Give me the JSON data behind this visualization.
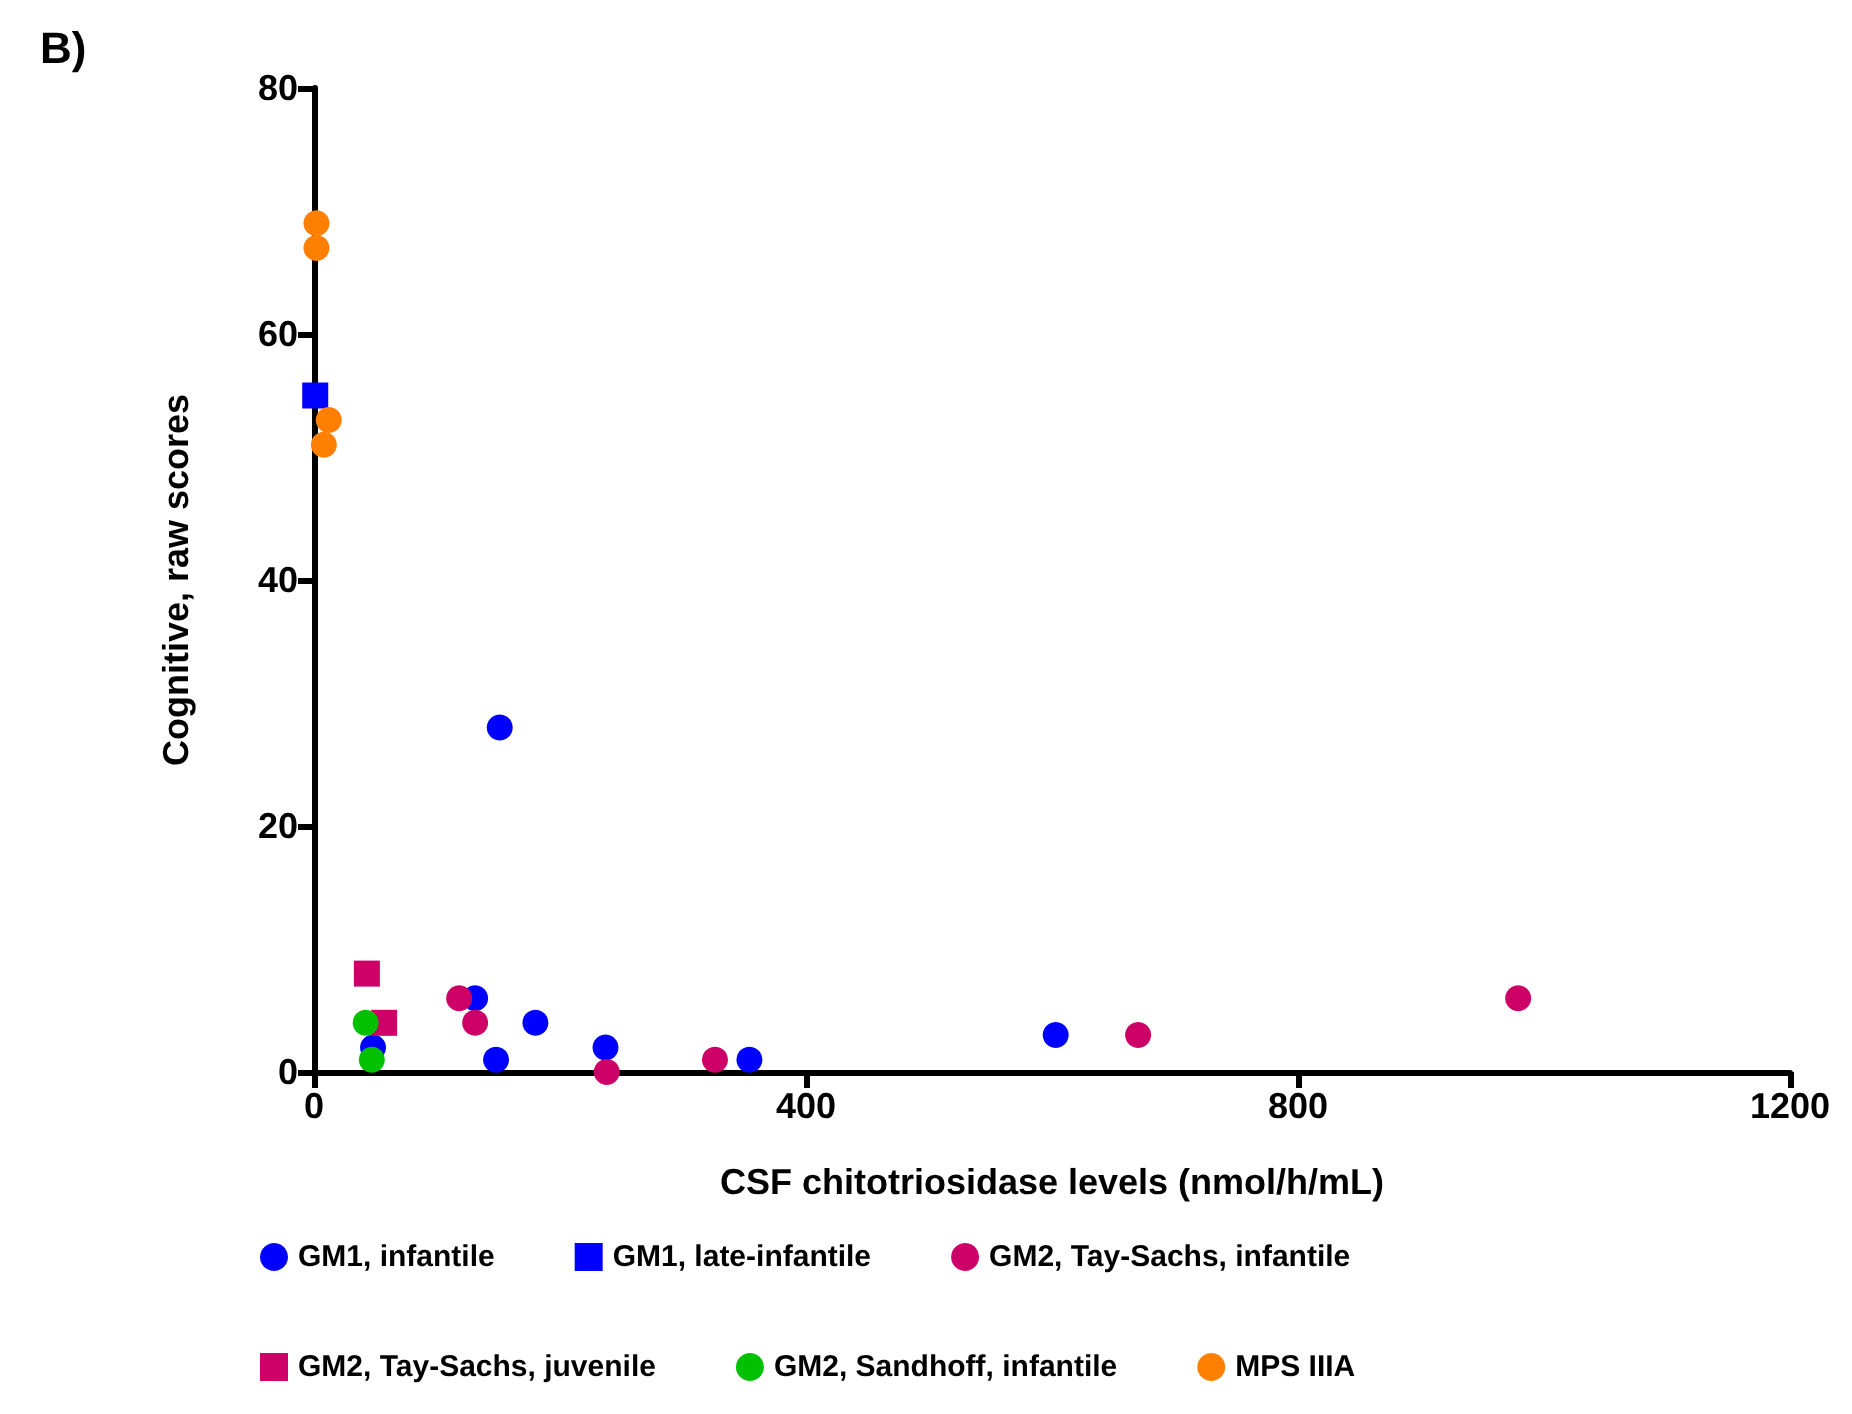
{
  "chart_data": {
    "type": "scatter",
    "title": "B)",
    "xlabel": "CSF chitotriosidase levels (nmol/h/mL)",
    "ylabel": "Cognitive, raw scores",
    "xlim": [
      0,
      1200
    ],
    "xticks": [
      0,
      400,
      800,
      1200
    ],
    "ylim": [
      0,
      80
    ],
    "yticks": [
      0,
      20,
      40,
      60,
      80
    ],
    "grid": false,
    "legend": "bottom",
    "series": [
      {
        "name": "GM1, infantile",
        "color": "#0000ff",
        "marker": "circle",
        "x": [
          48,
          131,
          148,
          180,
          237,
          354,
          603,
          151
        ],
        "values": [
          2,
          6,
          1,
          4,
          2,
          1,
          3,
          28
        ]
      },
      {
        "name": "GM1, late-infantile",
        "color": "#0000ff",
        "marker": "square",
        "x": [
          1
        ],
        "values": [
          55
        ]
      },
      {
        "name": "GM2, Tay-Sachs, infantile",
        "color": "#cc0066",
        "marker": "circle",
        "x": [
          118,
          131,
          238,
          326,
          670,
          979
        ],
        "values": [
          6,
          4,
          0,
          1,
          3,
          6
        ]
      },
      {
        "name": "GM2, Tay-Sachs, juvenile",
        "color": "#cc0066",
        "marker": "square",
        "x": [
          43,
          57
        ],
        "values": [
          8,
          4
        ]
      },
      {
        "name": "GM2, Sandhoff, infantile",
        "color": "#00c000",
        "marker": "circle",
        "x": [
          42,
          47
        ],
        "values": [
          4,
          1
        ]
      },
      {
        "name": "MPS IIIA",
        "color": "#ff8000",
        "marker": "circle",
        "x": [
          2,
          2,
          12,
          8
        ],
        "values": [
          69,
          67,
          53,
          51
        ]
      }
    ]
  }
}
